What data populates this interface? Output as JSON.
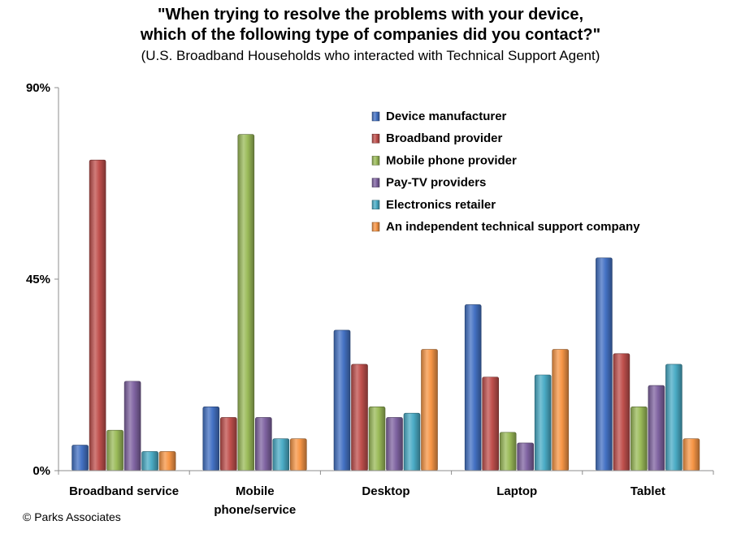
{
  "chart_data": {
    "type": "bar",
    "title": "\"When trying to resolve the problems with your device, which of the following type of companies did you contact?\"",
    "title_lines": [
      "\"When trying to resolve the problems with your device,",
      "which of the following type of companies did you contact?\""
    ],
    "subtitle": "(U.S. Broadband Households who interacted with Technical Support Agent)",
    "categories": [
      "Broadband service",
      "Mobile phone/service",
      "Desktop",
      "Laptop",
      "Tablet"
    ],
    "category_label_lines": [
      [
        "Broadband service"
      ],
      [
        "Mobile",
        "phone/service"
      ],
      [
        "Desktop"
      ],
      [
        "Laptop"
      ],
      [
        "Tablet"
      ]
    ],
    "y_ticks": [
      "0%",
      "45%",
      "90%"
    ],
    "ylim": [
      0,
      90
    ],
    "y_unit": "%",
    "grid": false,
    "legend_position": "top-right",
    "series": [
      {
        "name": "Device manufacturer",
        "color": "#4472C4",
        "values": [
          6,
          15,
          33,
          39,
          50
        ]
      },
      {
        "name": "Broadband provider",
        "color": "#C0504D",
        "values": [
          73,
          12.5,
          25,
          22,
          27.5
        ]
      },
      {
        "name": "Mobile phone provider",
        "color": "#9BBB59",
        "values": [
          9.5,
          79,
          15,
          9,
          15
        ]
      },
      {
        "name": "Pay-TV providers",
        "color": "#8064A2",
        "values": [
          21,
          12.5,
          12.5,
          6.5,
          20
        ]
      },
      {
        "name": "Electronics retailer",
        "color": "#4BACC6",
        "values": [
          4.5,
          7.5,
          13.5,
          22.5,
          25
        ]
      },
      {
        "name": "An independent technical support company",
        "color": "#F79646",
        "values": [
          4.5,
          7.5,
          28.5,
          28.5,
          7.5
        ]
      }
    ]
  },
  "footer": {
    "copyright": "© Parks Associates"
  }
}
